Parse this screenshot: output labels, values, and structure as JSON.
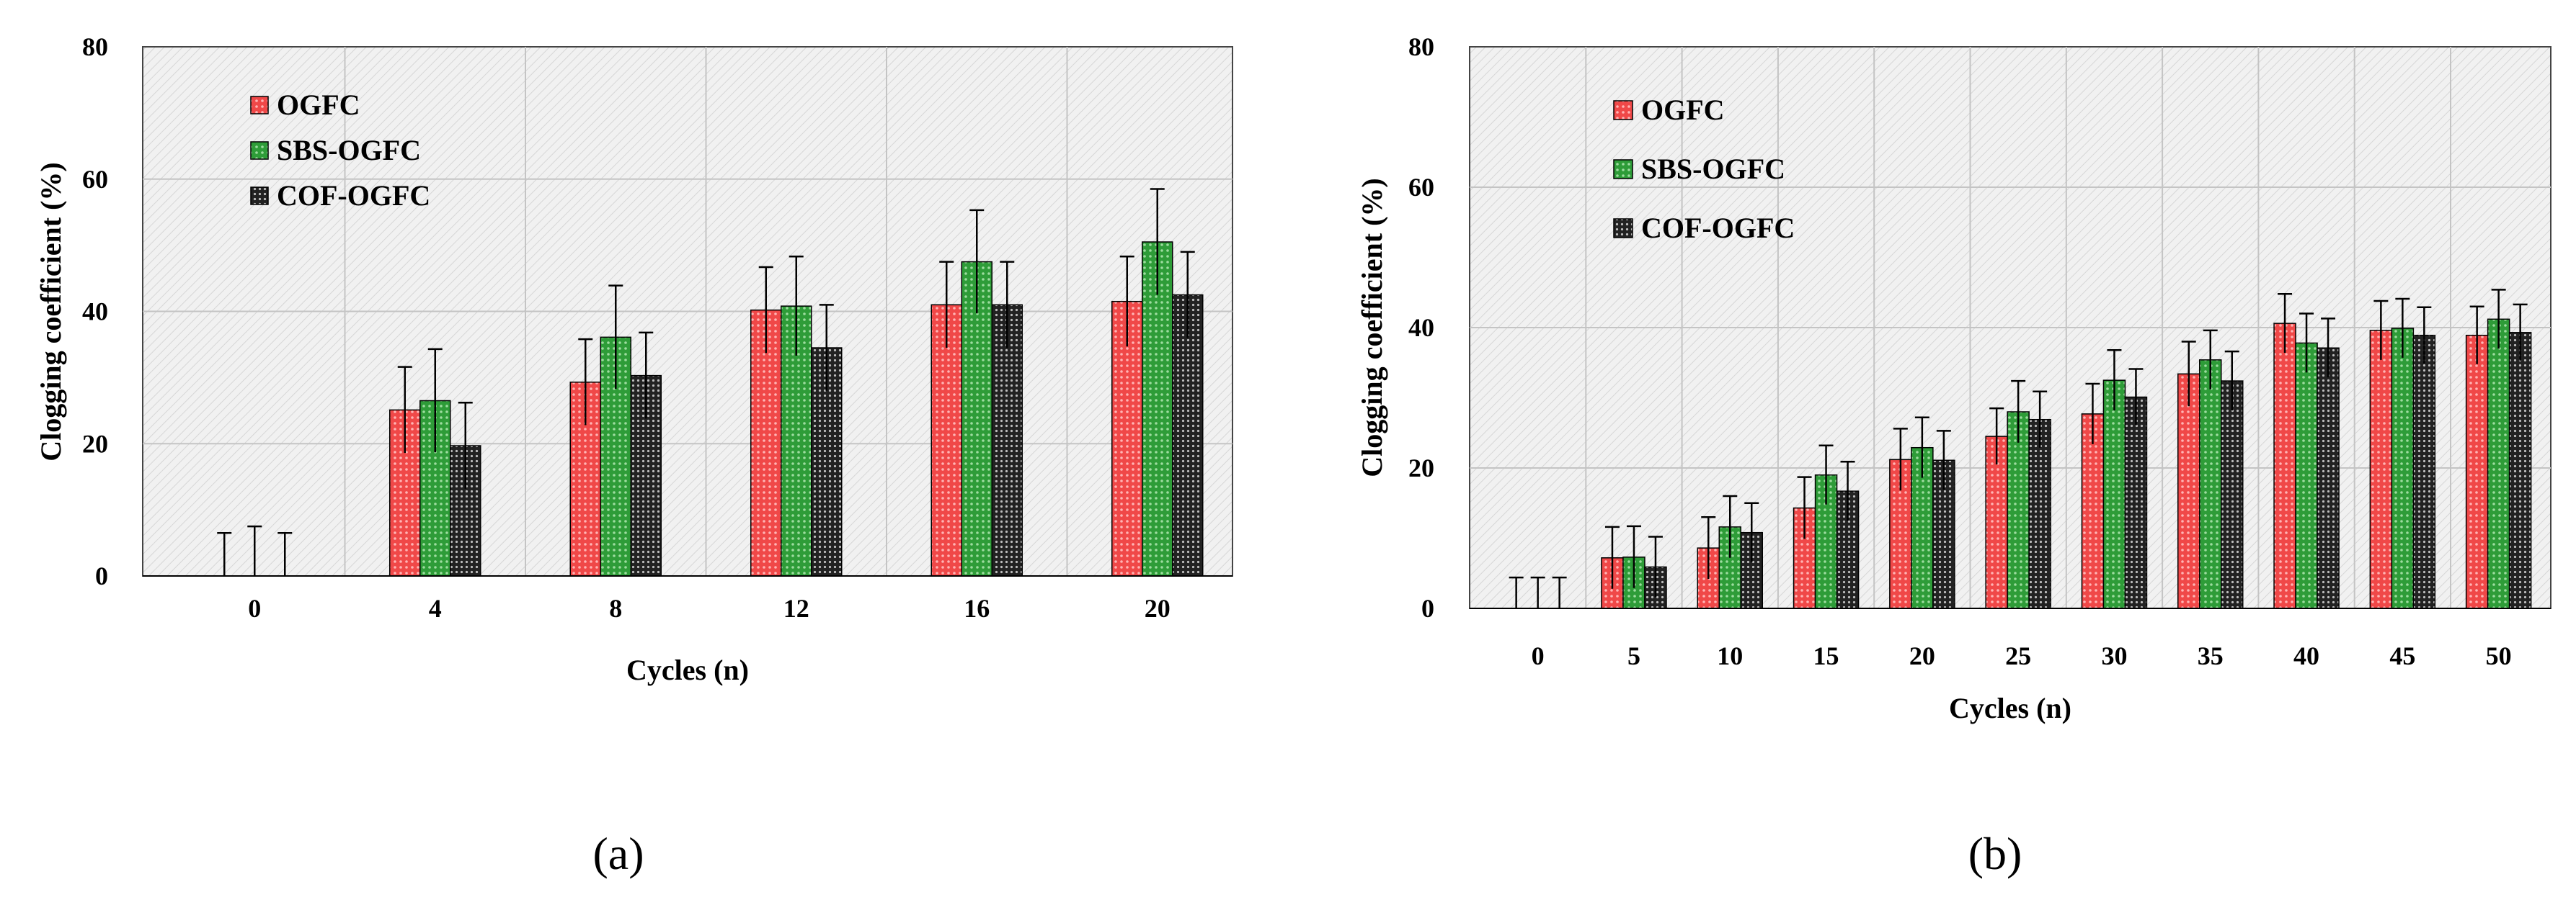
{
  "colors": {
    "ogfc": "#f33a3a",
    "sbs": "#2fa33a",
    "cof": "#1c1c1c",
    "plot_bg": "#f2f2f2",
    "grid": "#c4c4c4"
  },
  "panel_labels": {
    "a": "(a)",
    "b": "(b)"
  },
  "chart_data": [
    {
      "id": "a",
      "type": "bar",
      "title": "",
      "xlabel": "Cycles (n)",
      "ylabel": "Clogging coefficient (%)",
      "ylim": [
        0,
        80
      ],
      "yticks": [
        "0",
        "20",
        "40",
        "60",
        "80"
      ],
      "grid": true,
      "legend_position": "top-left",
      "categories": [
        "0",
        "4",
        "8",
        "12",
        "16",
        "20"
      ],
      "series": [
        {
          "name": "OGFC",
          "color_key": "ogfc",
          "values": [
            0,
            25.1,
            29.3,
            40.2,
            41.0,
            41.5
          ],
          "errors": [
            6.5,
            6.5,
            6.5,
            6.5,
            6.5,
            6.8
          ]
        },
        {
          "name": "SBS-OGFC",
          "color_key": "sbs",
          "values": [
            0,
            26.5,
            36.1,
            40.8,
            47.5,
            50.5
          ],
          "errors": [
            7.5,
            7.8,
            7.8,
            7.5,
            7.8,
            8.0
          ]
        },
        {
          "name": "COF-OGFC",
          "color_key": "cof",
          "values": [
            0,
            19.7,
            30.3,
            34.5,
            41.0,
            42.5
          ],
          "errors": [
            6.5,
            6.5,
            6.5,
            6.5,
            6.5,
            6.5
          ]
        }
      ]
    },
    {
      "id": "b",
      "type": "bar",
      "title": "",
      "xlabel": "Cycles (n)",
      "ylabel": "Clogging coefficient   (%)",
      "ylim": [
        0,
        80
      ],
      "yticks": [
        "0",
        "20",
        "40",
        "60",
        "80"
      ],
      "grid": true,
      "legend_position": "top-left",
      "categories": [
        "0",
        "5",
        "10",
        "15",
        "20",
        "25",
        "30",
        "35",
        "40",
        "45",
        "50"
      ],
      "series": [
        {
          "name": "OGFC",
          "color_key": "ogfc",
          "values": [
            0,
            7.2,
            8.6,
            14.3,
            21.2,
            24.5,
            27.7,
            33.4,
            40.6,
            39.6,
            38.9
          ],
          "errors": [
            4.4,
            4.4,
            4.4,
            4.4,
            4.4,
            4.0,
            4.3,
            4.6,
            4.2,
            4.2,
            4.1
          ]
        },
        {
          "name": "SBS-OGFC",
          "color_key": "sbs",
          "values": [
            0,
            7.3,
            11.6,
            19.0,
            22.9,
            28.0,
            32.5,
            35.4,
            37.8,
            39.9,
            41.2
          ],
          "errors": [
            4.4,
            4.4,
            4.4,
            4.2,
            4.3,
            4.4,
            4.3,
            4.2,
            4.2,
            4.2,
            4.2
          ]
        },
        {
          "name": "COF-OGFC",
          "color_key": "cof",
          "values": [
            0,
            5.9,
            10.8,
            16.7,
            21.1,
            26.9,
            30.1,
            32.4,
            37.1,
            38.9,
            39.3
          ],
          "errors": [
            4.4,
            4.3,
            4.2,
            4.2,
            4.2,
            4.0,
            4.0,
            4.2,
            4.2,
            4.0,
            4.0
          ]
        }
      ]
    }
  ]
}
